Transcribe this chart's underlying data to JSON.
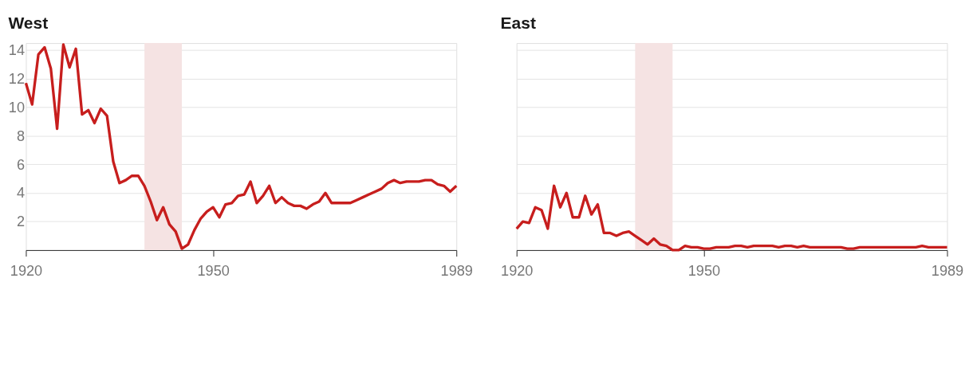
{
  "chart_data": [
    {
      "type": "line",
      "title": "West",
      "x": [
        1920,
        1921,
        1922,
        1923,
        1924,
        1925,
        1926,
        1927,
        1928,
        1929,
        1930,
        1931,
        1932,
        1933,
        1934,
        1935,
        1936,
        1937,
        1938,
        1939,
        1940,
        1941,
        1942,
        1943,
        1944,
        1945,
        1946,
        1947,
        1948,
        1949,
        1950,
        1951,
        1952,
        1953,
        1954,
        1955,
        1956,
        1957,
        1958,
        1959,
        1960,
        1961,
        1962,
        1963,
        1964,
        1965,
        1966,
        1967,
        1968,
        1969,
        1970,
        1971,
        1972,
        1973,
        1974,
        1975,
        1976,
        1977,
        1978,
        1979,
        1980,
        1981,
        1982,
        1983,
        1984,
        1985,
        1986,
        1987,
        1988,
        1989
      ],
      "series": [
        {
          "color": "#c71e1d",
          "values": [
            11.7,
            10.2,
            13.7,
            14.2,
            12.7,
            8.5,
            14.4,
            12.8,
            14.1,
            9.5,
            9.8,
            8.9,
            9.9,
            9.4,
            6.2,
            4.7,
            4.9,
            5.2,
            5.2,
            4.5,
            3.4,
            2.1,
            3.0,
            1.8,
            1.3,
            0.1,
            0.4,
            1.4,
            2.2,
            2.7,
            3.0,
            2.3,
            3.2,
            3.3,
            3.8,
            3.9,
            4.8,
            3.3,
            3.8,
            4.5,
            3.3,
            3.7,
            3.3,
            3.1,
            3.1,
            2.9,
            3.2,
            3.4,
            4.0,
            3.3,
            3.3,
            3.3,
            3.3,
            3.5,
            3.7,
            3.9,
            4.1,
            4.3,
            4.7,
            4.9,
            4.7,
            4.8,
            4.8,
            4.8,
            4.9,
            4.9,
            4.6,
            4.5,
            4.1,
            4.5
          ]
        }
      ],
      "xlim": [
        1920,
        1989
      ],
      "xticks": [
        1920,
        1950,
        1989
      ],
      "ylim": [
        0,
        14.5
      ],
      "yticks": [
        2,
        4,
        6,
        8,
        10,
        12,
        14
      ],
      "grid": "y",
      "bands": [
        {
          "axis": "x",
          "from": 1939,
          "to": 1945,
          "color": "#f5e3e3"
        }
      ]
    },
    {
      "type": "line",
      "title": "East",
      "x": [
        1920,
        1921,
        1922,
        1923,
        1924,
        1925,
        1926,
        1927,
        1928,
        1929,
        1930,
        1931,
        1932,
        1933,
        1934,
        1935,
        1936,
        1937,
        1938,
        1939,
        1940,
        1941,
        1942,
        1943,
        1944,
        1945,
        1946,
        1947,
        1948,
        1949,
        1950,
        1951,
        1952,
        1953,
        1954,
        1955,
        1956,
        1957,
        1958,
        1959,
        1960,
        1961,
        1962,
        1963,
        1964,
        1965,
        1966,
        1967,
        1968,
        1969,
        1970,
        1971,
        1972,
        1973,
        1974,
        1975,
        1976,
        1977,
        1978,
        1979,
        1980,
        1981,
        1982,
        1983,
        1984,
        1985,
        1986,
        1987,
        1988,
        1989
      ],
      "series": [
        {
          "color": "#c71e1d",
          "values": [
            1.5,
            2.0,
            1.9,
            3.0,
            2.8,
            1.5,
            4.5,
            3.0,
            4.0,
            2.3,
            2.3,
            3.8,
            2.5,
            3.2,
            1.2,
            1.2,
            1.0,
            1.2,
            1.3,
            1.0,
            0.7,
            0.4,
            0.8,
            0.4,
            0.3,
            0.0,
            0.0,
            0.3,
            0.2,
            0.2,
            0.1,
            0.1,
            0.2,
            0.2,
            0.2,
            0.3,
            0.3,
            0.2,
            0.3,
            0.3,
            0.3,
            0.3,
            0.2,
            0.3,
            0.3,
            0.2,
            0.3,
            0.2,
            0.2,
            0.2,
            0.2,
            0.2,
            0.2,
            0.1,
            0.1,
            0.2,
            0.2,
            0.2,
            0.2,
            0.2,
            0.2,
            0.2,
            0.2,
            0.2,
            0.2,
            0.3,
            0.2,
            0.2,
            0.2,
            0.2
          ]
        }
      ],
      "xlim": [
        1920,
        1989
      ],
      "xticks": [
        1920,
        1950,
        1989
      ],
      "ylim": [
        0,
        14.5
      ],
      "yticks": [
        2,
        4,
        6,
        8,
        10,
        12,
        14
      ],
      "grid": "y",
      "tick_labels": "x",
      "bands": [
        {
          "axis": "x",
          "from": 1939,
          "to": 1945,
          "color": "#f5e3e3"
        }
      ]
    }
  ]
}
